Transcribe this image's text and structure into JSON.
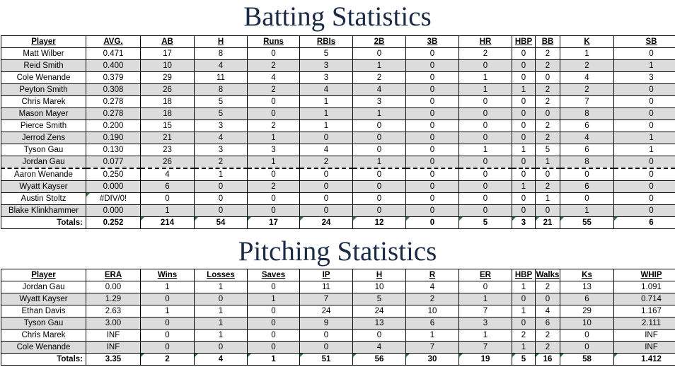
{
  "batting": {
    "title": "Batting Statistics",
    "headers": [
      "Player",
      "AVG.",
      "AB",
      "H",
      "Runs",
      "RBIs",
      "2B",
      "3B",
      "HR",
      "HBP",
      "BB",
      "K",
      "SB"
    ],
    "rows": [
      [
        "Matt Wilber",
        "0.471",
        "17",
        "8",
        "0",
        "5",
        "0",
        "0",
        "2",
        "0",
        "2",
        "1",
        "0"
      ],
      [
        "Reid Smith",
        "0.400",
        "10",
        "4",
        "2",
        "3",
        "1",
        "0",
        "0",
        "0",
        "2",
        "2",
        "1"
      ],
      [
        "Cole Wenande",
        "0.379",
        "29",
        "11",
        "4",
        "3",
        "2",
        "0",
        "1",
        "0",
        "0",
        "4",
        "3"
      ],
      [
        "Peyton Smith",
        "0.308",
        "26",
        "8",
        "2",
        "4",
        "4",
        "0",
        "1",
        "1",
        "2",
        "2",
        "0"
      ],
      [
        "Chris Marek",
        "0.278",
        "18",
        "5",
        "0",
        "1",
        "3",
        "0",
        "0",
        "0",
        "2",
        "7",
        "0"
      ],
      [
        "Mason Mayer",
        "0.278",
        "18",
        "5",
        "0",
        "1",
        "1",
        "0",
        "0",
        "0",
        "0",
        "8",
        "0"
      ],
      [
        "Pierce Smith",
        "0.200",
        "15",
        "3",
        "2",
        "1",
        "0",
        "0",
        "0",
        "0",
        "2",
        "6",
        "0"
      ],
      [
        "Jerrod Zens",
        "0.190",
        "21",
        "4",
        "1",
        "0",
        "0",
        "0",
        "0",
        "0",
        "2",
        "4",
        "1"
      ],
      [
        "Tyson Gau",
        "0.130",
        "23",
        "3",
        "3",
        "4",
        "0",
        "0",
        "1",
        "1",
        "5",
        "6",
        "1"
      ],
      [
        "Jordan Gau",
        "0.077",
        "26",
        "2",
        "1",
        "2",
        "1",
        "0",
        "0",
        "0",
        "1",
        "8",
        "0"
      ],
      [
        "Aaron Wenande",
        "0.250",
        "4",
        "1",
        "0",
        "0",
        "0",
        "0",
        "0",
        "0",
        "0",
        "0",
        "0"
      ],
      [
        "Wyatt Kayser",
        "0.000",
        "6",
        "0",
        "2",
        "0",
        "0",
        "0",
        "0",
        "1",
        "2",
        "6",
        "0"
      ],
      [
        "Austin Stoltz",
        "#DIV/0!",
        "0",
        "0",
        "0",
        "0",
        "0",
        "0",
        "0",
        "0",
        "1",
        "0",
        "0"
      ],
      [
        "Blake Klinkhammer",
        "0.000",
        "1",
        "0",
        "0",
        "0",
        "0",
        "0",
        "0",
        "0",
        "0",
        "1",
        "0"
      ]
    ],
    "totals": [
      "Totals:",
      "0.252",
      "214",
      "54",
      "17",
      "24",
      "12",
      "0",
      "5",
      "3",
      "21",
      "55",
      "6"
    ]
  },
  "pitching": {
    "title": "Pitching Statistics",
    "headers": [
      "Player",
      "ERA",
      "Wins",
      "Losses",
      "Saves",
      "IP",
      "H",
      "R",
      "ER",
      "HBP",
      "Walks",
      "Ks",
      "WHIP"
    ],
    "rows": [
      [
        "Jordan Gau",
        "0.00",
        "1",
        "1",
        "0",
        "11",
        "10",
        "4",
        "0",
        "1",
        "2",
        "13",
        "1.091"
      ],
      [
        "Wyatt Kayser",
        "1.29",
        "0",
        "0",
        "1",
        "7",
        "5",
        "2",
        "1",
        "0",
        "0",
        "6",
        "0.714"
      ],
      [
        "Ethan Davis",
        "2.63",
        "1",
        "1",
        "0",
        "24",
        "24",
        "10",
        "7",
        "1",
        "4",
        "29",
        "1.167"
      ],
      [
        "Tyson Gau",
        "3.00",
        "0",
        "1",
        "0",
        "9",
        "13",
        "6",
        "3",
        "0",
        "6",
        "10",
        "2.111"
      ],
      [
        "Chris Marek",
        "INF",
        "0",
        "1",
        "0",
        "0",
        "0",
        "1",
        "1",
        "2",
        "2",
        "0",
        "INF"
      ],
      [
        "Cole Wenande",
        "INF",
        "0",
        "0",
        "0",
        "0",
        "4",
        "7",
        "7",
        "1",
        "2",
        "0",
        "INF"
      ]
    ],
    "totals": [
      "Totals:",
      "3.35",
      "2",
      "4",
      "1",
      "51",
      "56",
      "30",
      "19",
      "5",
      "16",
      "58",
      "1.412"
    ]
  }
}
